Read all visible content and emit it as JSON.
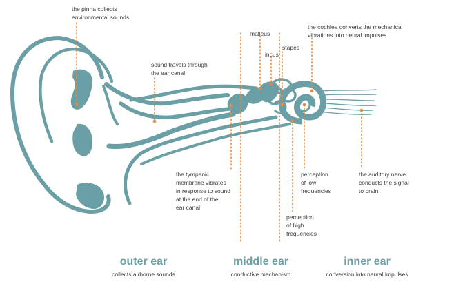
{
  "colors": {
    "anatomy": "#6b9fa6",
    "accent": "#e6883e",
    "text": "#3e3e3e",
    "section": "#6b9fa6"
  },
  "labels": {
    "pinna": "the pinna collects\nenvironmental sounds",
    "canal": "sound travels through\nthe ear canal",
    "malleus": "malleus",
    "incus": "incus",
    "stapes": "stapes",
    "cochlea": "the cochlea converts the mechanical\nvibrations into neural impulses",
    "tympanic": "the tympanic\nmembrane vibrates\nin response to sound\nat the end of the\near canal",
    "low": "perception\nof low\nfrequencies",
    "high": "perception\nof high\nfrequencies",
    "nerve": "the auditory nerve\nconducts the signal\nto brain"
  },
  "sections": [
    {
      "title": "outer ear",
      "subtitle": "collects airborne sounds"
    },
    {
      "title": "middle ear",
      "subtitle": "conductive mechanism"
    },
    {
      "title": "inner ear",
      "subtitle": "conversion into neural impulses"
    }
  ]
}
